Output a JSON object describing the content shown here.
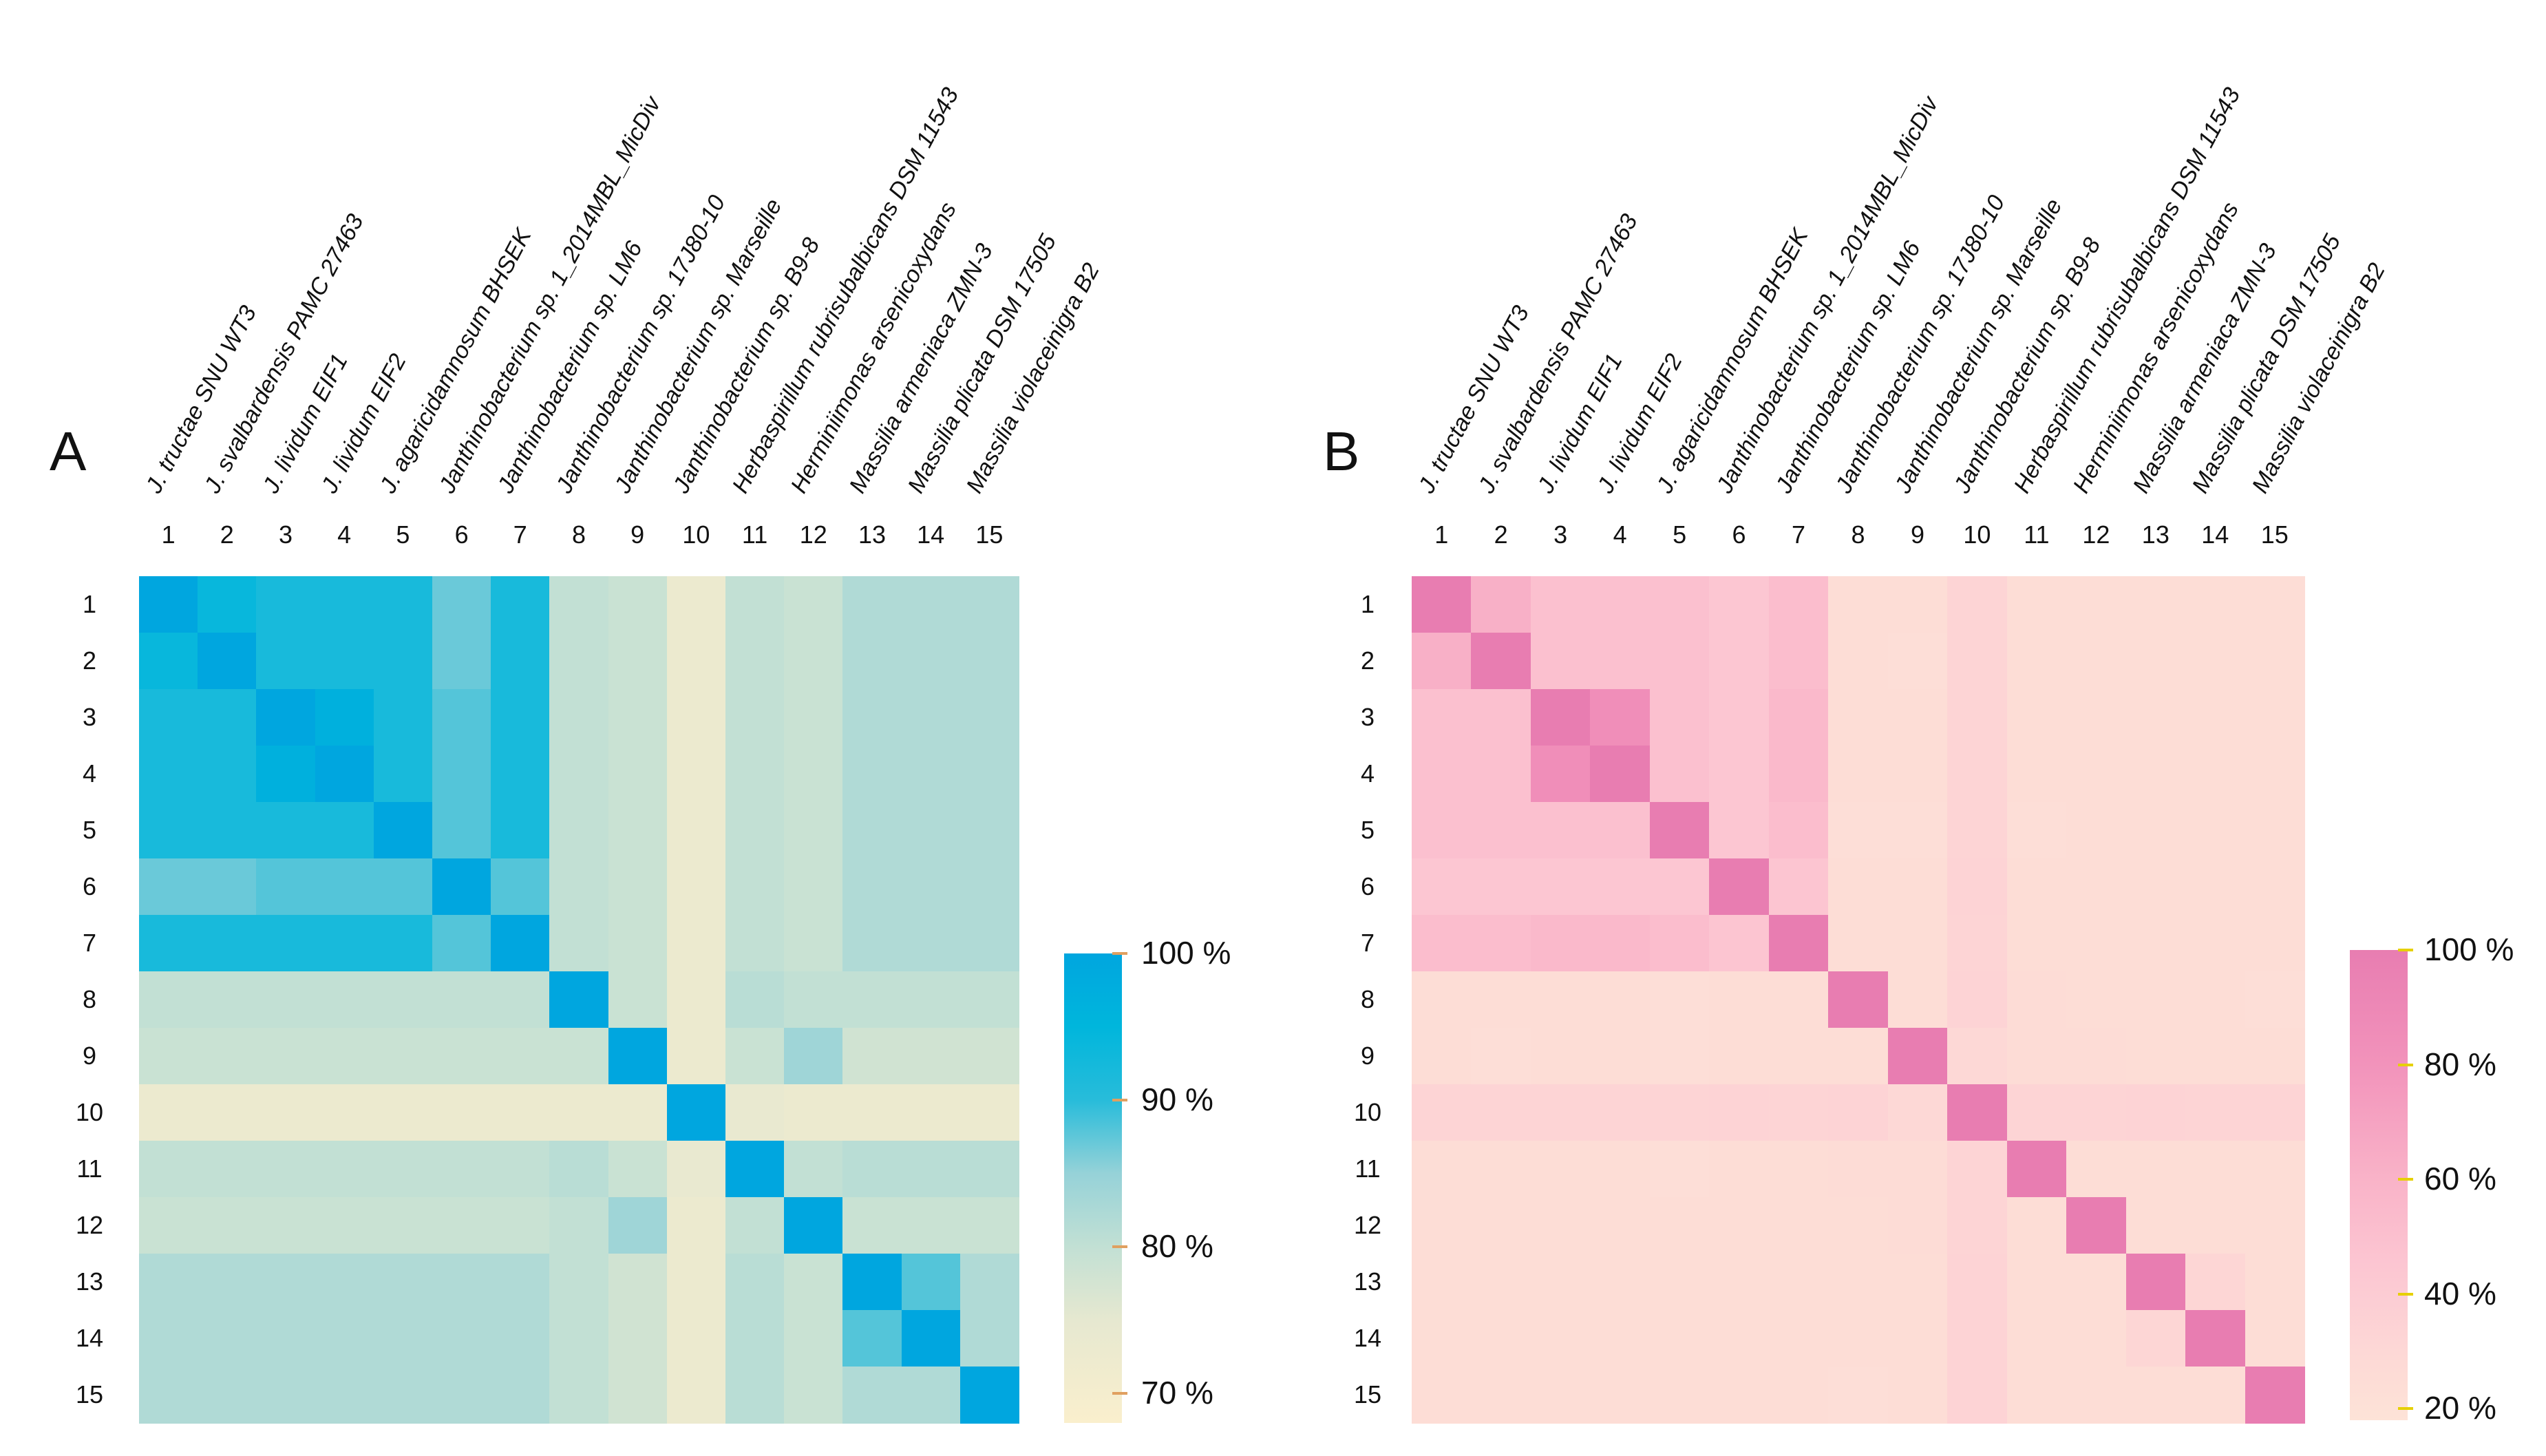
{
  "chart_data": [
    {
      "type": "heatmap",
      "panel": "A",
      "row_labels": [
        "1",
        "2",
        "3",
        "4",
        "5",
        "6",
        "7",
        "8",
        "9",
        "10",
        "11",
        "12",
        "13",
        "14",
        "15"
      ],
      "col_numbers": [
        "1",
        "2",
        "3",
        "4",
        "5",
        "6",
        "7",
        "8",
        "9",
        "10",
        "11",
        "12",
        "13",
        "14",
        "15"
      ],
      "col_labels": [
        "J. tructae SNU WT3",
        "J. svalbardensis PAMC 27463",
        "J. lividum EIF1",
        "J. lividum EIF2",
        "J. agaricidamnosum BHSEK",
        "Janthinobacterium sp. 1_2014MBL_MicDiv",
        "Janthinobacterium sp. LM6",
        "Janthinobacterium sp. 17J80-10",
        "Janthinobacterium sp. Marseille",
        "Janthinobacterium sp. B9-8",
        "Herbaspirillum rubrisubalbicans DSM 11543",
        "Herminiimonas arsenicoxydans",
        "Massilia armeniaca ZMN-3",
        "Massilia plicata DSM 17505",
        "Massilia violaceinigra B2"
      ],
      "values": [
        [
          100,
          94,
          92,
          92,
          92,
          87,
          92,
          80,
          79,
          73,
          80,
          79,
          82,
          82,
          82
        ],
        [
          94,
          100,
          92,
          92,
          92,
          87,
          92,
          80,
          79,
          73,
          80,
          79,
          82,
          82,
          82
        ],
        [
          92,
          92,
          100,
          97,
          92,
          88,
          92,
          80,
          79,
          73,
          80,
          79,
          82,
          82,
          82
        ],
        [
          92,
          92,
          97,
          100,
          92,
          88,
          92,
          80,
          79,
          73,
          80,
          79,
          82,
          82,
          82
        ],
        [
          92,
          92,
          92,
          92,
          100,
          88,
          92,
          80,
          79,
          73,
          80,
          79,
          82,
          82,
          82
        ],
        [
          87,
          87,
          88,
          88,
          88,
          100,
          88,
          80,
          79,
          73,
          80,
          79,
          82,
          82,
          82
        ],
        [
          92,
          92,
          92,
          92,
          92,
          88,
          100,
          80,
          79,
          73,
          80,
          79,
          82,
          82,
          82
        ],
        [
          80,
          80,
          80,
          80,
          80,
          80,
          80,
          100,
          79,
          73,
          81,
          80,
          80,
          80,
          80
        ],
        [
          79,
          79,
          79,
          79,
          79,
          79,
          79,
          79,
          100,
          73,
          79,
          84,
          78,
          78,
          78
        ],
        [
          73,
          73,
          73,
          73,
          73,
          73,
          73,
          73,
          73,
          100,
          74,
          73,
          73,
          73,
          73
        ],
        [
          80,
          80,
          80,
          80,
          80,
          80,
          80,
          81,
          79,
          74,
          100,
          80,
          81,
          81,
          81
        ],
        [
          79,
          79,
          79,
          79,
          79,
          79,
          79,
          80,
          84,
          73,
          80,
          100,
          79,
          79,
          79
        ],
        [
          82,
          82,
          82,
          82,
          82,
          82,
          82,
          80,
          78,
          73,
          81,
          79,
          100,
          88,
          82
        ],
        [
          82,
          82,
          82,
          82,
          82,
          82,
          82,
          80,
          78,
          73,
          81,
          79,
          88,
          100,
          82
        ],
        [
          82,
          82,
          82,
          82,
          82,
          82,
          82,
          80,
          78,
          73,
          81,
          79,
          82,
          82,
          100
        ]
      ],
      "colorbar": {
        "ticks": [
          100,
          90,
          80,
          70
        ],
        "tick_labels": [
          "100 %",
          "90 %",
          "80 %",
          "70 %"
        ],
        "range": [
          68,
          100
        ],
        "colors": [
          {
            "v": 68,
            "c": "#faefcd"
          },
          {
            "v": 75,
            "c": "#e6e8d0"
          },
          {
            "v": 80,
            "c": "#c2e0d4"
          },
          {
            "v": 85,
            "c": "#96d2d8"
          },
          {
            "v": 90,
            "c": "#28bcda"
          },
          {
            "v": 95,
            "c": "#00b6dc"
          },
          {
            "v": 100,
            "c": "#00a6df"
          }
        ],
        "tick_color": "#e0a060"
      }
    },
    {
      "type": "heatmap",
      "panel": "B",
      "row_labels": [
        "1",
        "2",
        "3",
        "4",
        "5",
        "6",
        "7",
        "8",
        "9",
        "10",
        "11",
        "12",
        "13",
        "14",
        "15"
      ],
      "col_numbers": [
        "1",
        "2",
        "3",
        "4",
        "5",
        "6",
        "7",
        "8",
        "9",
        "10",
        "11",
        "12",
        "13",
        "14",
        "15"
      ],
      "col_labels": [
        "J. tructae SNU WT3",
        "J. svalbardensis PAMC 27463",
        "J. lividum EIF1",
        "J. lividum EIF2",
        "J. agaricidamnosum BHSEK",
        "Janthinobacterium sp. 1_2014MBL_MicDiv",
        "Janthinobacterium sp. LM6",
        "Janthinobacterium sp. 17J80-10",
        "Janthinobacterium sp. Marseille",
        "Janthinobacterium sp. B9-8",
        "Herbaspirillum rubrisubalbicans DSM 11543",
        "Herminiimonas arsenicoxydans",
        "Massilia armeniaca ZMN-3",
        "Massilia plicata DSM 17505",
        "Massilia violaceinigra B2"
      ],
      "values": [
        [
          100,
          62,
          50,
          50,
          50,
          45,
          52,
          25,
          25,
          33,
          25,
          25,
          25,
          25,
          25
        ],
        [
          62,
          100,
          50,
          50,
          50,
          45,
          52,
          25,
          24,
          33,
          25,
          25,
          25,
          25,
          25
        ],
        [
          50,
          50,
          100,
          85,
          50,
          45,
          55,
          25,
          25,
          33,
          25,
          25,
          25,
          25,
          25
        ],
        [
          50,
          50,
          85,
          100,
          50,
          45,
          55,
          25,
          25,
          33,
          25,
          25,
          25,
          25,
          25
        ],
        [
          50,
          50,
          50,
          50,
          100,
          45,
          52,
          24,
          24,
          33,
          24,
          25,
          25,
          25,
          25
        ],
        [
          45,
          45,
          45,
          45,
          45,
          100,
          46,
          25,
          25,
          34,
          25,
          25,
          25,
          25,
          25
        ],
        [
          52,
          52,
          55,
          55,
          52,
          46,
          100,
          25,
          25,
          33,
          25,
          25,
          25,
          25,
          25
        ],
        [
          25,
          25,
          25,
          25,
          24,
          25,
          25,
          100,
          25,
          34,
          26,
          25,
          25,
          25,
          24
        ],
        [
          25,
          24,
          25,
          25,
          24,
          25,
          25,
          25,
          100,
          30,
          26,
          26,
          25,
          25,
          25
        ],
        [
          33,
          33,
          33,
          33,
          33,
          34,
          33,
          34,
          30,
          100,
          33,
          33,
          34,
          33,
          33
        ],
        [
          25,
          25,
          25,
          25,
          24,
          25,
          25,
          26,
          26,
          33,
          100,
          25,
          25,
          25,
          25
        ],
        [
          25,
          25,
          25,
          25,
          25,
          25,
          25,
          25,
          26,
          33,
          25,
          100,
          25,
          25,
          25
        ],
        [
          25,
          25,
          25,
          25,
          25,
          25,
          25,
          25,
          25,
          34,
          25,
          25,
          100,
          32,
          25
        ],
        [
          25,
          25,
          25,
          25,
          25,
          25,
          25,
          25,
          25,
          34,
          25,
          25,
          32,
          100,
          25
        ],
        [
          25,
          25,
          25,
          25,
          25,
          25,
          25,
          24,
          25,
          34,
          25,
          25,
          25,
          25,
          100
        ]
      ],
      "colorbar": {
        "ticks": [
          100,
          80,
          60,
          40,
          20
        ],
        "tick_labels": [
          "100 %",
          "80 %",
          "60 %",
          "40 %",
          "20 %"
        ],
        "range": [
          18,
          100
        ],
        "colors": [
          {
            "v": 18,
            "c": "#fde3d7"
          },
          {
            "v": 30,
            "c": "#fdd8d6"
          },
          {
            "v": 45,
            "c": "#fcc6d2"
          },
          {
            "v": 60,
            "c": "#f9b3c8"
          },
          {
            "v": 80,
            "c": "#f293bb"
          },
          {
            "v": 100,
            "c": "#e87db1"
          }
        ],
        "tick_color": "#e6d000"
      }
    }
  ],
  "panels": {
    "a_letter": "A",
    "b_letter": "B"
  }
}
